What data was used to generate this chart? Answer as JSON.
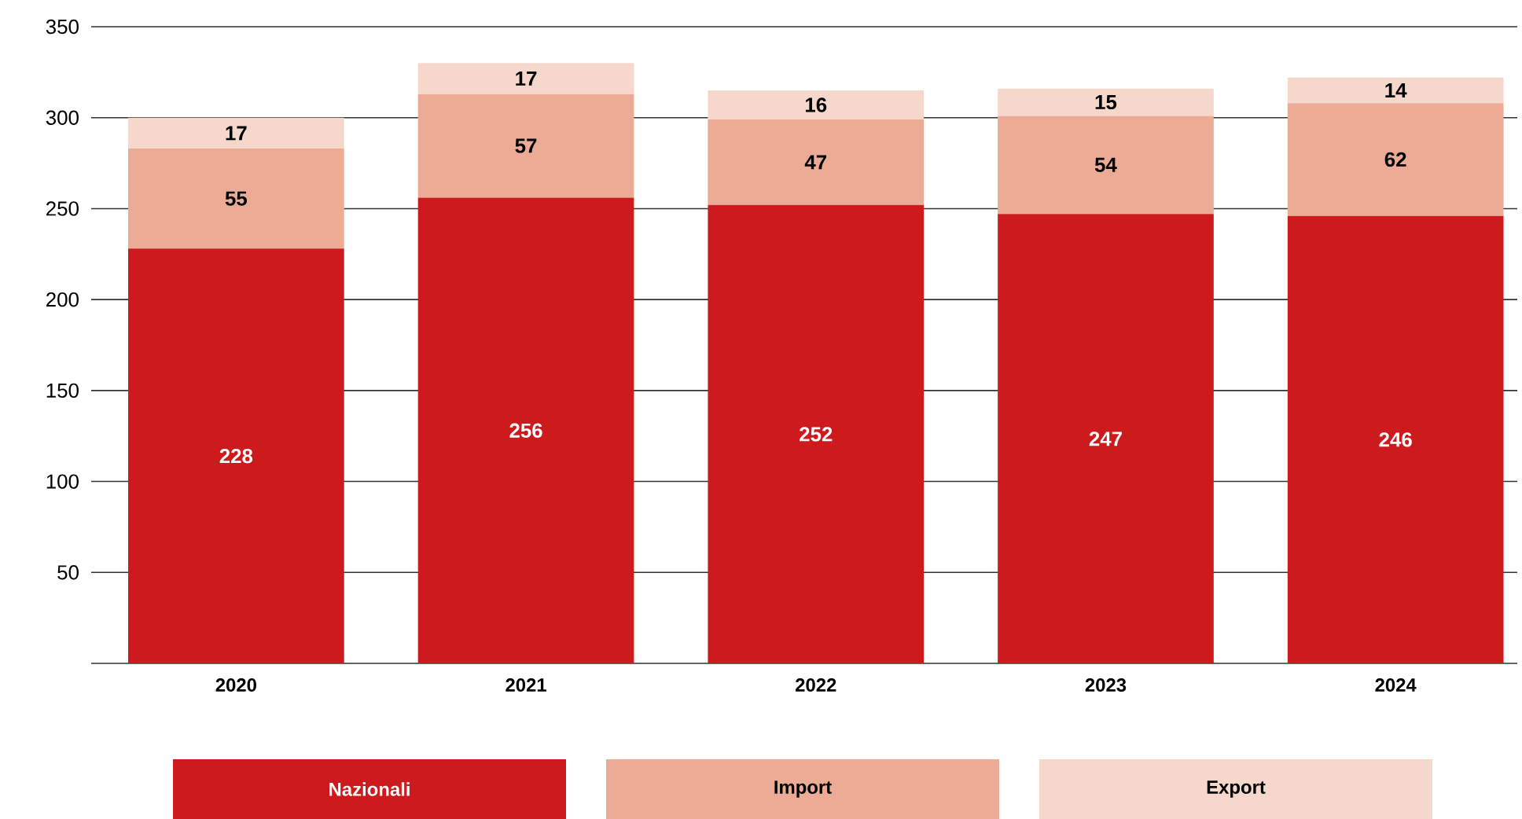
{
  "chart_data": {
    "type": "bar",
    "stacked": true,
    "categories": [
      "2020",
      "2021",
      "2022",
      "2023",
      "2024"
    ],
    "series": [
      {
        "name": "Nazionali",
        "color": "#cc1a1d",
        "values": [
          228,
          256,
          252,
          247,
          246
        ]
      },
      {
        "name": "Import",
        "color": "#ebab94",
        "values": [
          55,
          57,
          47,
          54,
          62
        ]
      },
      {
        "name": "Export",
        "color": "#f6d7cb",
        "values": [
          17,
          17,
          16,
          15,
          14
        ]
      }
    ],
    "ylim": [
      0,
      350
    ],
    "yticks": [
      {
        "value": 0,
        "label": null
      },
      50,
      100,
      150,
      200,
      250,
      300,
      350
    ],
    "grid": "y",
    "legend": "bottom",
    "data_labels": true
  }
}
